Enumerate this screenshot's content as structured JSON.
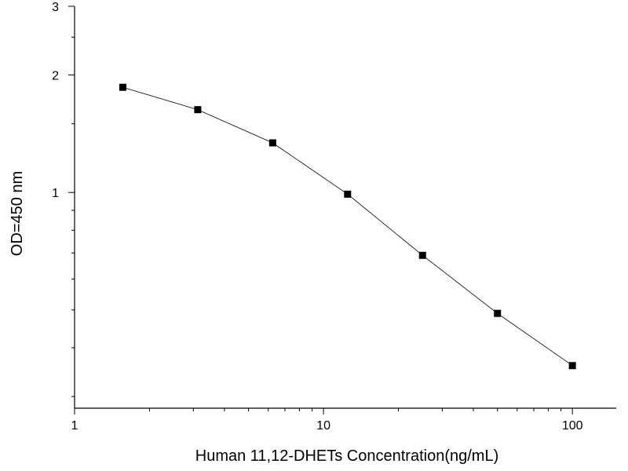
{
  "chart_data": {
    "type": "line",
    "title": "",
    "xlabel": "Human 11,12-DHETs Concentration(ng/mL)",
    "ylabel": "OD=450 nm",
    "x_scale": "log",
    "y_scale": "log",
    "xlim": [
      1,
      150
    ],
    "ylim": [
      0.28,
      3
    ],
    "x_ticks": [
      {
        "value": 1,
        "label": "1"
      },
      {
        "value": 10,
        "label": "10"
      },
      {
        "value": 100,
        "label": "100"
      }
    ],
    "y_ticks": [
      {
        "value": 1,
        "label": "1"
      },
      {
        "value": 2,
        "label": "2"
      },
      {
        "value": 3,
        "label": "3"
      }
    ],
    "grid": false,
    "legend": "none",
    "marker": "square",
    "series": [
      {
        "x": [
          1.5625,
          3.125,
          6.25,
          12.5,
          25,
          50,
          100
        ],
        "y": [
          1.86,
          1.63,
          1.34,
          0.99,
          0.69,
          0.49,
          0.36
        ]
      }
    ],
    "colors": {
      "line": "#000000",
      "marker": "#000000",
      "axis": "#000000"
    }
  }
}
